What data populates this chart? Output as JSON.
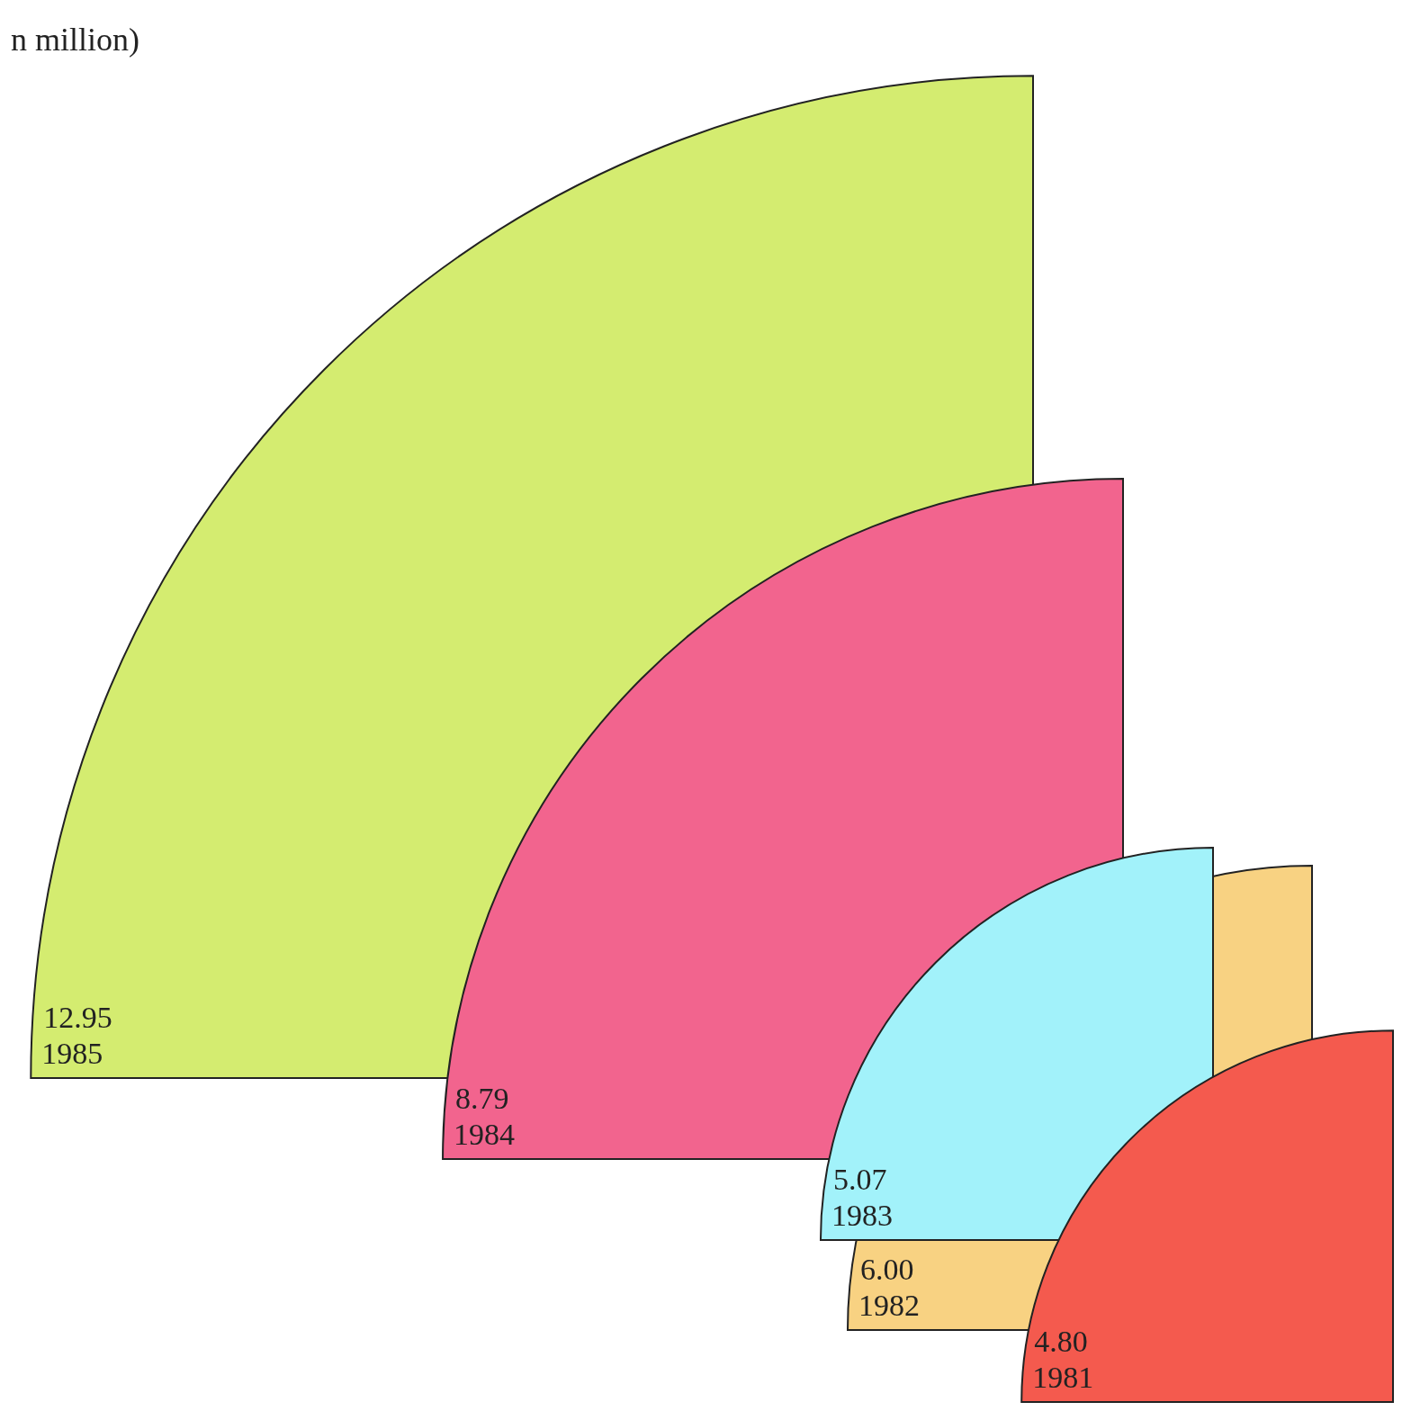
{
  "chart_data": {
    "type": "other",
    "title": "n million)",
    "categories": [
      "1985",
      "1984",
      "1983",
      "1982",
      "1981"
    ],
    "values": [
      12.95,
      8.79,
      5.07,
      6.0,
      4.8
    ],
    "value_labels": [
      "12.95",
      "8.79",
      "5.07",
      "6.00",
      "4.80"
    ],
    "colors": [
      "#d4ec70",
      "#f2648e",
      "#a2f2fa",
      "#f8d282",
      "#f45a4e"
    ]
  }
}
